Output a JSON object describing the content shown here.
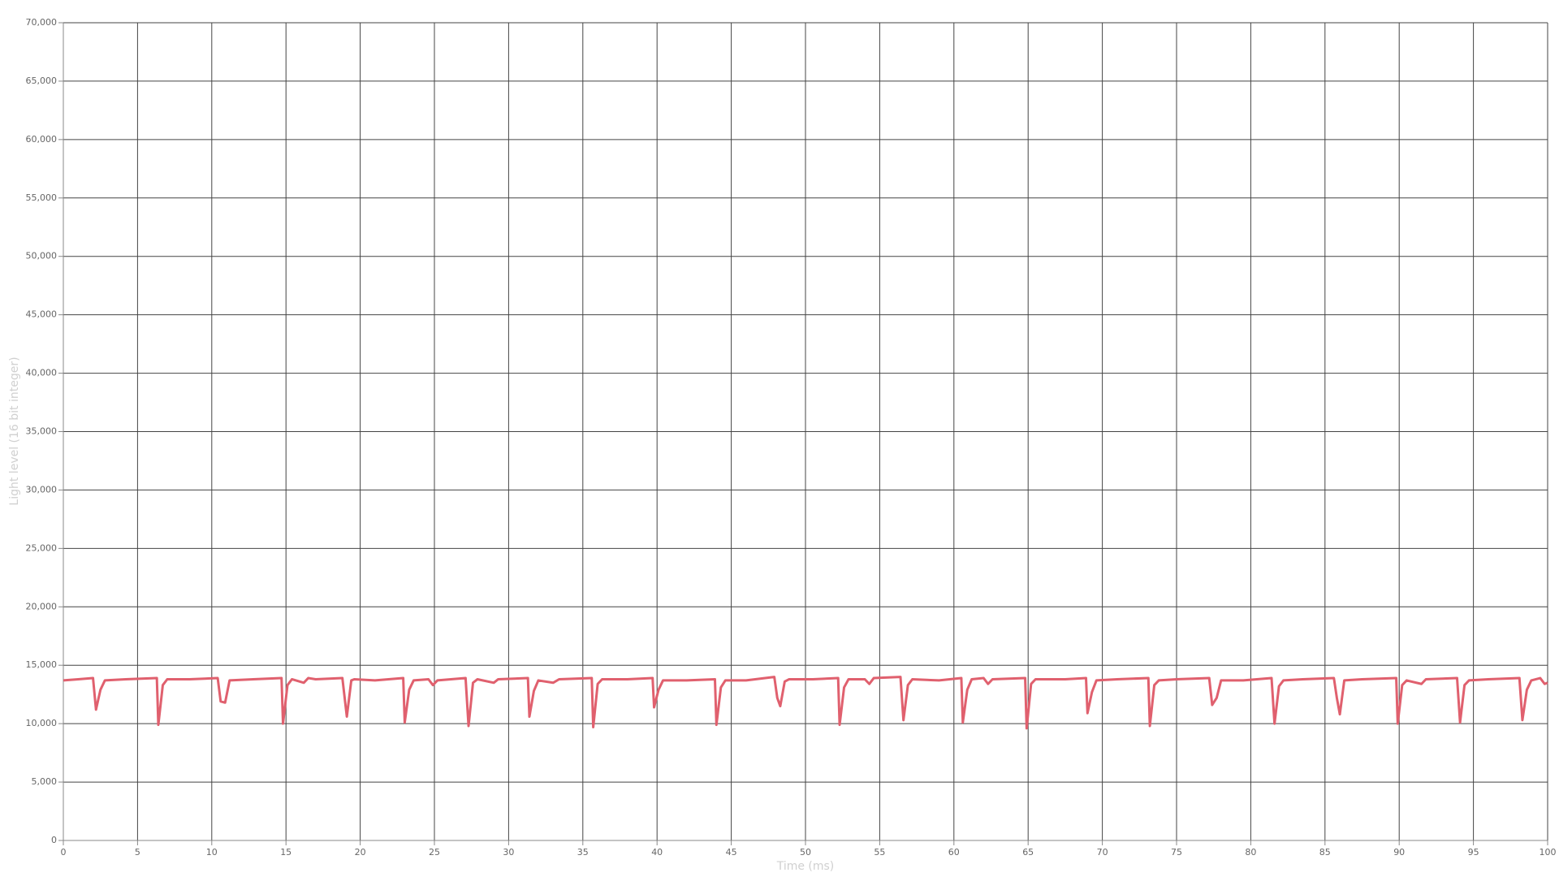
{
  "chart_data": {
    "type": "line",
    "x_label": "Time (ms)",
    "y_label": "Light level (16 bit integer)",
    "color": "#e0606e",
    "grid": true,
    "xlim": [
      0,
      100
    ],
    "xticks": [
      0,
      5,
      10,
      15,
      20,
      25,
      30,
      35,
      40,
      45,
      50,
      55,
      60,
      65,
      70,
      75,
      80,
      85,
      90,
      95,
      100
    ],
    "ylim": [
      0,
      70000
    ],
    "yticks": [
      0,
      {
        "value": 5000,
        "label": "5,000"
      },
      {
        "value": 10000,
        "label": "10,000"
      },
      {
        "value": 15000,
        "label": "15,000"
      },
      {
        "value": 20000,
        "label": "20,000"
      },
      {
        "value": 25000,
        "label": "25,000"
      },
      {
        "value": 30000,
        "label": "30,000"
      },
      {
        "value": 35000,
        "label": "35,000"
      },
      {
        "value": 40000,
        "label": "40,000"
      },
      {
        "value": 45000,
        "label": "45,000"
      },
      {
        "value": 50000,
        "label": "50,000"
      },
      {
        "value": 55000,
        "label": "55,000"
      },
      {
        "value": 60000,
        "label": "60,000"
      },
      {
        "value": 65000,
        "label": "65,000"
      },
      {
        "value": 70000,
        "label": "70,000"
      }
    ],
    "x": [
      0,
      1.0,
      2.0,
      2.2,
      2.5,
      2.8,
      4.2,
      6.3,
      6.4,
      6.7,
      7.0,
      8.5,
      10.4,
      10.6,
      10.9,
      11.2,
      12.8,
      14.7,
      14.8,
      15.1,
      15.4,
      16.2,
      16.5,
      17.0,
      18.8,
      19.1,
      19.4,
      19.6,
      21.0,
      22.9,
      23.0,
      23.3,
      23.6,
      24.6,
      24.9,
      25.2,
      27.1,
      27.3,
      27.6,
      27.9,
      29.0,
      29.3,
      31.3,
      31.4,
      31.7,
      32.0,
      33.0,
      33.4,
      35.6,
      35.7,
      36.0,
      36.3,
      38.0,
      39.7,
      39.8,
      40.1,
      40.4,
      42.0,
      43.9,
      44.0,
      44.3,
      44.6,
      46.0,
      47.9,
      48.1,
      48.3,
      48.6,
      48.9,
      50.5,
      52.2,
      52.3,
      52.6,
      52.9,
      54.0,
      54.3,
      54.6,
      56.4,
      56.6,
      56.9,
      57.2,
      59.0,
      60.5,
      60.6,
      60.9,
      61.2,
      62.0,
      62.3,
      62.6,
      64.8,
      64.9,
      65.2,
      65.5,
      67.5,
      68.9,
      69.0,
      69.3,
      69.6,
      71.0,
      73.1,
      73.2,
      73.5,
      73.8,
      75.0,
      77.2,
      77.4,
      77.7,
      78.0,
      79.5,
      81.4,
      81.6,
      81.9,
      82.2,
      83.5,
      85.6,
      85.8,
      86.0,
      86.3,
      87.5,
      89.8,
      89.9,
      90.2,
      90.5,
      91.5,
      91.8,
      93.9,
      94.1,
      94.4,
      94.7,
      96.0,
      98.1,
      98.3,
      98.6,
      98.9,
      99.5,
      99.8,
      100
    ],
    "values": [
      13700,
      13800,
      13900,
      11200,
      12900,
      13700,
      13800,
      13900,
      9900,
      13300,
      13800,
      13800,
      13900,
      11900,
      11800,
      13700,
      13800,
      13900,
      10000,
      13300,
      13800,
      13500,
      13900,
      13800,
      13900,
      10600,
      13700,
      13800,
      13700,
      13900,
      10100,
      12900,
      13700,
      13800,
      13300,
      13700,
      13900,
      9800,
      13500,
      13800,
      13500,
      13800,
      13900,
      10600,
      12800,
      13700,
      13500,
      13800,
      13900,
      9700,
      13400,
      13800,
      13800,
      13900,
      11400,
      12900,
      13700,
      13700,
      13800,
      9900,
      13100,
      13700,
      13700,
      14000,
      12200,
      11500,
      13600,
      13800,
      13800,
      13900,
      9900,
      13100,
      13800,
      13800,
      13400,
      13900,
      14000,
      10300,
      13300,
      13800,
      13700,
      13900,
      10100,
      12900,
      13800,
      13900,
      13400,
      13800,
      13900,
      9600,
      13400,
      13800,
      13800,
      13900,
      10900,
      12700,
      13700,
      13800,
      13900,
      9800,
      13300,
      13700,
      13800,
      13900,
      11600,
      12200,
      13700,
      13700,
      13900,
      10000,
      13200,
      13700,
      13800,
      13900,
      12200,
      10800,
      13700,
      13800,
      13900,
      10000,
      13300,
      13700,
      13400,
      13800,
      13900,
      10100,
      13300,
      13700,
      13800,
      13900,
      10300,
      12900,
      13700,
      13900,
      13400,
      13500
    ]
  }
}
